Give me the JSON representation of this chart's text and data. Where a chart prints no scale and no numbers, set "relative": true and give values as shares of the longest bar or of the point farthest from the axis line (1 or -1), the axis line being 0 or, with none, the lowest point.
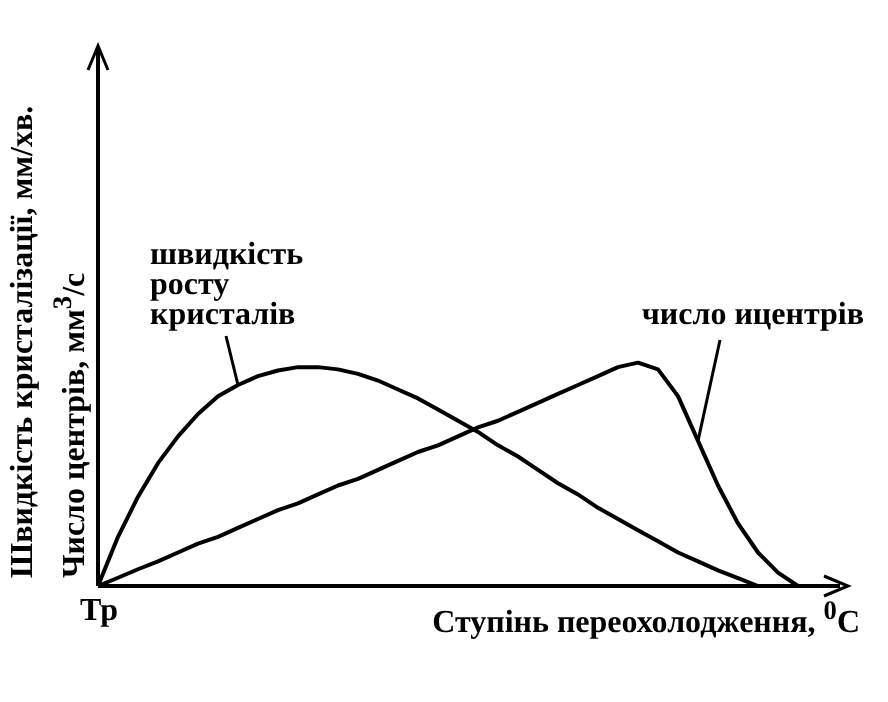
{
  "chart_data": {
    "type": "line",
    "relative": true,
    "xlabel": "Ступінь переохолодження, $^{0}$C",
    "ylabel": "Швидкість кристалізації, мм/хв.\nЧисло центрів, мм$^{3}$/с",
    "annotations": [
      "Тр"
    ],
    "categories": [
      null,
      null,
      null,
      null,
      null,
      null,
      null,
      null,
      null,
      null,
      null,
      null,
      null,
      null,
      null,
      null,
      null,
      null,
      null,
      null,
      null,
      null,
      null,
      null,
      null,
      null,
      null,
      null,
      null,
      null,
      null,
      null,
      null,
      null,
      null,
      null,
      null
    ],
    "series": [
      {
        "name": "швидкість\nросту\nкристалів",
        "color": "#000000",
        "values": [
          0,
          0.22,
          0.4,
          0.55,
          0.67,
          0.77,
          0.85,
          0.9,
          0.94,
          0.965,
          0.98,
          0.98,
          0.97,
          0.95,
          0.92,
          0.88,
          0.84,
          0.79,
          0.74,
          0.69,
          0.63,
          0.58,
          0.52,
          0.46,
          0.41,
          0.35,
          0.3,
          0.25,
          0.2,
          0.15,
          0.11,
          0.07,
          0.035,
          0,
          null,
          null,
          null
        ]
      },
      {
        "name": "число ицентрів",
        "color": "#000000",
        "values": [
          0,
          0.037,
          0.075,
          0.11,
          0.15,
          0.19,
          0.22,
          0.26,
          0.3,
          0.34,
          0.37,
          0.41,
          0.45,
          0.48,
          0.52,
          0.56,
          0.6,
          0.63,
          0.67,
          0.71,
          0.74,
          0.78,
          0.82,
          0.86,
          0.9,
          0.94,
          0.98,
          1,
          0.97,
          0.85,
          0.65,
          0.45,
          0.28,
          0.15,
          0.06,
          0,
          null
        ]
      }
    ],
    "grid": false,
    "legend": false,
    "marker": "none",
    "line_style": "solid"
  }
}
